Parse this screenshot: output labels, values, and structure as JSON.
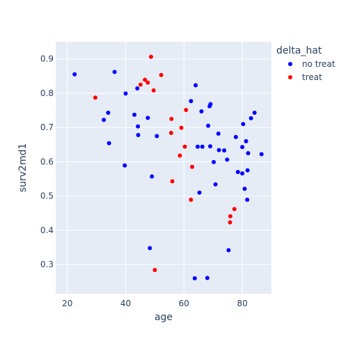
{
  "chart_data": {
    "type": "scatter",
    "xlabel": "age",
    "ylabel": "surv2md1",
    "xlim": [
      16,
      90
    ],
    "ylim": [
      0.215,
      0.95
    ],
    "x_ticks": [
      20,
      40,
      60,
      80
    ],
    "y_ticks": [
      0.3,
      0.4,
      0.5,
      0.6,
      0.7,
      0.8,
      0.9
    ],
    "grid": true,
    "background_color": "#e5ecf6",
    "legend": {
      "title": "delta_hat",
      "placement": "right"
    },
    "series": [
      {
        "name": "no treat",
        "color": "#0000ff",
        "points": [
          [
            22.5,
            0.855
          ],
          [
            32.5,
            0.722
          ],
          [
            34.0,
            0.743
          ],
          [
            34.3,
            0.654
          ],
          [
            36.2,
            0.862
          ],
          [
            39.7,
            0.589
          ],
          [
            40.0,
            0.799
          ],
          [
            43.0,
            0.737
          ],
          [
            44.0,
            0.814
          ],
          [
            44.2,
            0.703
          ],
          [
            44.3,
            0.678
          ],
          [
            47.6,
            0.728
          ],
          [
            48.3,
            0.348
          ],
          [
            49.0,
            0.557
          ],
          [
            50.7,
            0.675
          ],
          [
            62.4,
            0.777
          ],
          [
            63.7,
            0.26
          ],
          [
            64.0,
            0.823
          ],
          [
            64.7,
            0.644
          ],
          [
            65.3,
            0.51
          ],
          [
            66.0,
            0.747
          ],
          [
            66.3,
            0.644
          ],
          [
            68.0,
            0.261
          ],
          [
            68.3,
            0.705
          ],
          [
            68.8,
            0.762
          ],
          [
            69.0,
            0.645
          ],
          [
            69.1,
            0.768
          ],
          [
            70.2,
            0.599
          ],
          [
            70.8,
            0.534
          ],
          [
            71.8,
            0.682
          ],
          [
            72.0,
            0.634
          ],
          [
            73.8,
            0.633
          ],
          [
            74.8,
            0.606
          ],
          [
            75.3,
            0.342
          ],
          [
            77.8,
            0.672
          ],
          [
            78.5,
            0.57
          ],
          [
            80.0,
            0.566
          ],
          [
            80.0,
            0.643
          ],
          [
            80.3,
            0.71
          ],
          [
            80.8,
            0.521
          ],
          [
            81.3,
            0.66
          ],
          [
            81.7,
            0.489
          ],
          [
            81.8,
            0.575
          ],
          [
            82.0,
            0.625
          ],
          [
            83.0,
            0.727
          ],
          [
            84.2,
            0.743
          ],
          [
            86.6,
            0.622
          ]
        ]
      },
      {
        "name": "treat",
        "color": "#ff0000",
        "points": [
          [
            29.6,
            0.787
          ],
          [
            45.1,
            0.825
          ],
          [
            46.6,
            0.839
          ],
          [
            47.6,
            0.831
          ],
          [
            48.7,
            0.906
          ],
          [
            49.6,
            0.808
          ],
          [
            50.0,
            0.284
          ],
          [
            52.2,
            0.853
          ],
          [
            55.6,
            0.684
          ],
          [
            55.7,
            0.725
          ],
          [
            56.0,
            0.543
          ],
          [
            58.6,
            0.618
          ],
          [
            59.1,
            0.699
          ],
          [
            60.3,
            0.644
          ],
          [
            60.7,
            0.751
          ],
          [
            62.4,
            0.489
          ],
          [
            62.8,
            0.585
          ],
          [
            75.8,
            0.423
          ],
          [
            75.9,
            0.441
          ],
          [
            77.3,
            0.462
          ]
        ]
      }
    ]
  }
}
